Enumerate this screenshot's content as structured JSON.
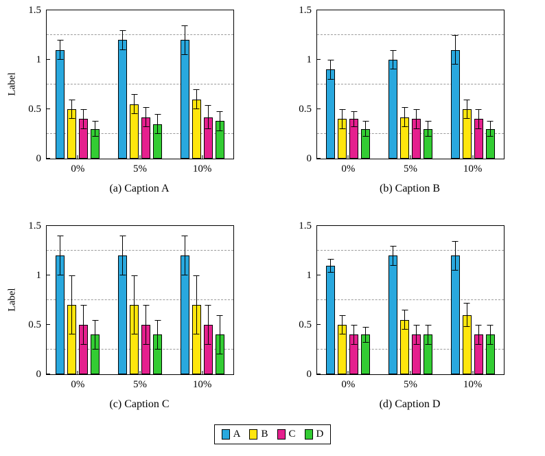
{
  "legend": {
    "items": [
      {
        "label": "A",
        "color": "#29A8DE"
      },
      {
        "label": "B",
        "color": "#FFE60D"
      },
      {
        "label": "C",
        "color": "#E5208E"
      },
      {
        "label": "D",
        "color": "#33CC33"
      }
    ]
  },
  "chart_data": [
    {
      "id": "a",
      "type": "bar",
      "caption": "(a) Caption A",
      "ylabel": "Label",
      "categories": [
        "0%",
        "5%",
        "10%"
      ],
      "ylim": [
        0,
        1.5
      ],
      "yticks": [
        0,
        0.5,
        1,
        1.5
      ],
      "ytick_labels": [
        "0",
        "0.5",
        "1",
        "1.5"
      ],
      "gridlines": [
        0.25,
        0.75,
        1.25
      ],
      "grid_style": "dashed",
      "series": [
        {
          "name": "A",
          "color": "#29A8DE",
          "values": [
            1.1,
            1.2,
            1.2
          ],
          "errors": [
            0.1,
            0.1,
            0.15
          ]
        },
        {
          "name": "B",
          "color": "#FFE60D",
          "values": [
            0.5,
            0.55,
            0.6
          ],
          "errors": [
            0.1,
            0.1,
            0.1
          ]
        },
        {
          "name": "C",
          "color": "#E5208E",
          "values": [
            0.4,
            0.42,
            0.42
          ],
          "errors": [
            0.1,
            0.1,
            0.12
          ]
        },
        {
          "name": "D",
          "color": "#33CC33",
          "values": [
            0.3,
            0.35,
            0.38
          ],
          "errors": [
            0.08,
            0.1,
            0.1
          ]
        }
      ]
    },
    {
      "id": "b",
      "type": "bar",
      "caption": "(b) Caption B",
      "ylabel": "",
      "categories": [
        "0%",
        "5%",
        "10%"
      ],
      "ylim": [
        0,
        1.5
      ],
      "yticks": [
        0,
        0.5,
        1,
        1.5
      ],
      "ytick_labels": [
        "0",
        "0.5",
        "1",
        "1.5"
      ],
      "gridlines": [
        0.25,
        0.75,
        1.25
      ],
      "grid_style": "dashed",
      "series": [
        {
          "name": "A",
          "color": "#29A8DE",
          "values": [
            0.9,
            1.0,
            1.1
          ],
          "errors": [
            0.1,
            0.1,
            0.15
          ]
        },
        {
          "name": "B",
          "color": "#FFE60D",
          "values": [
            0.4,
            0.42,
            0.5
          ],
          "errors": [
            0.1,
            0.1,
            0.1
          ]
        },
        {
          "name": "C",
          "color": "#E5208E",
          "values": [
            0.4,
            0.4,
            0.4
          ],
          "errors": [
            0.08,
            0.1,
            0.1
          ]
        },
        {
          "name": "D",
          "color": "#33CC33",
          "values": [
            0.3,
            0.3,
            0.3
          ],
          "errors": [
            0.08,
            0.08,
            0.08
          ]
        }
      ]
    },
    {
      "id": "c",
      "type": "bar",
      "caption": "(c) Caption C",
      "ylabel": "Label",
      "categories": [
        "0%",
        "5%",
        "10%"
      ],
      "ylim": [
        0,
        1.5
      ],
      "yticks": [
        0,
        0.5,
        1,
        1.5
      ],
      "ytick_labels": [
        "0",
        "0.5",
        "1",
        "1.5"
      ],
      "gridlines": [
        0.25,
        0.75,
        1.25
      ],
      "grid_style": "dashed",
      "series": [
        {
          "name": "A",
          "color": "#29A8DE",
          "values": [
            1.2,
            1.2,
            1.2
          ],
          "errors": [
            0.2,
            0.2,
            0.2
          ]
        },
        {
          "name": "B",
          "color": "#FFE60D",
          "values": [
            0.7,
            0.7,
            0.7
          ],
          "errors": [
            0.3,
            0.3,
            0.3
          ]
        },
        {
          "name": "C",
          "color": "#E5208E",
          "values": [
            0.5,
            0.5,
            0.5
          ],
          "errors": [
            0.2,
            0.2,
            0.2
          ]
        },
        {
          "name": "D",
          "color": "#33CC33",
          "values": [
            0.4,
            0.4,
            0.4
          ],
          "errors": [
            0.15,
            0.15,
            0.2
          ]
        }
      ]
    },
    {
      "id": "d",
      "type": "bar",
      "caption": "(d) Caption D",
      "ylabel": "",
      "categories": [
        "0%",
        "5%",
        "10%"
      ],
      "ylim": [
        0,
        1.5
      ],
      "yticks": [
        0,
        0.5,
        1,
        1.5
      ],
      "ytick_labels": [
        "0",
        "0.5",
        "1",
        "1.5"
      ],
      "gridlines": [
        0.25,
        0.75,
        1.25
      ],
      "grid_style": "dashed",
      "series": [
        {
          "name": "A",
          "color": "#29A8DE",
          "values": [
            1.1,
            1.2,
            1.2
          ],
          "errors": [
            0.07,
            0.1,
            0.15
          ]
        },
        {
          "name": "B",
          "color": "#FFE60D",
          "values": [
            0.5,
            0.55,
            0.6
          ],
          "errors": [
            0.1,
            0.1,
            0.12
          ]
        },
        {
          "name": "C",
          "color": "#E5208E",
          "values": [
            0.4,
            0.4,
            0.4
          ],
          "errors": [
            0.1,
            0.1,
            0.1
          ]
        },
        {
          "name": "D",
          "color": "#33CC33",
          "values": [
            0.4,
            0.4,
            0.4
          ],
          "errors": [
            0.08,
            0.1,
            0.1
          ]
        }
      ]
    }
  ]
}
